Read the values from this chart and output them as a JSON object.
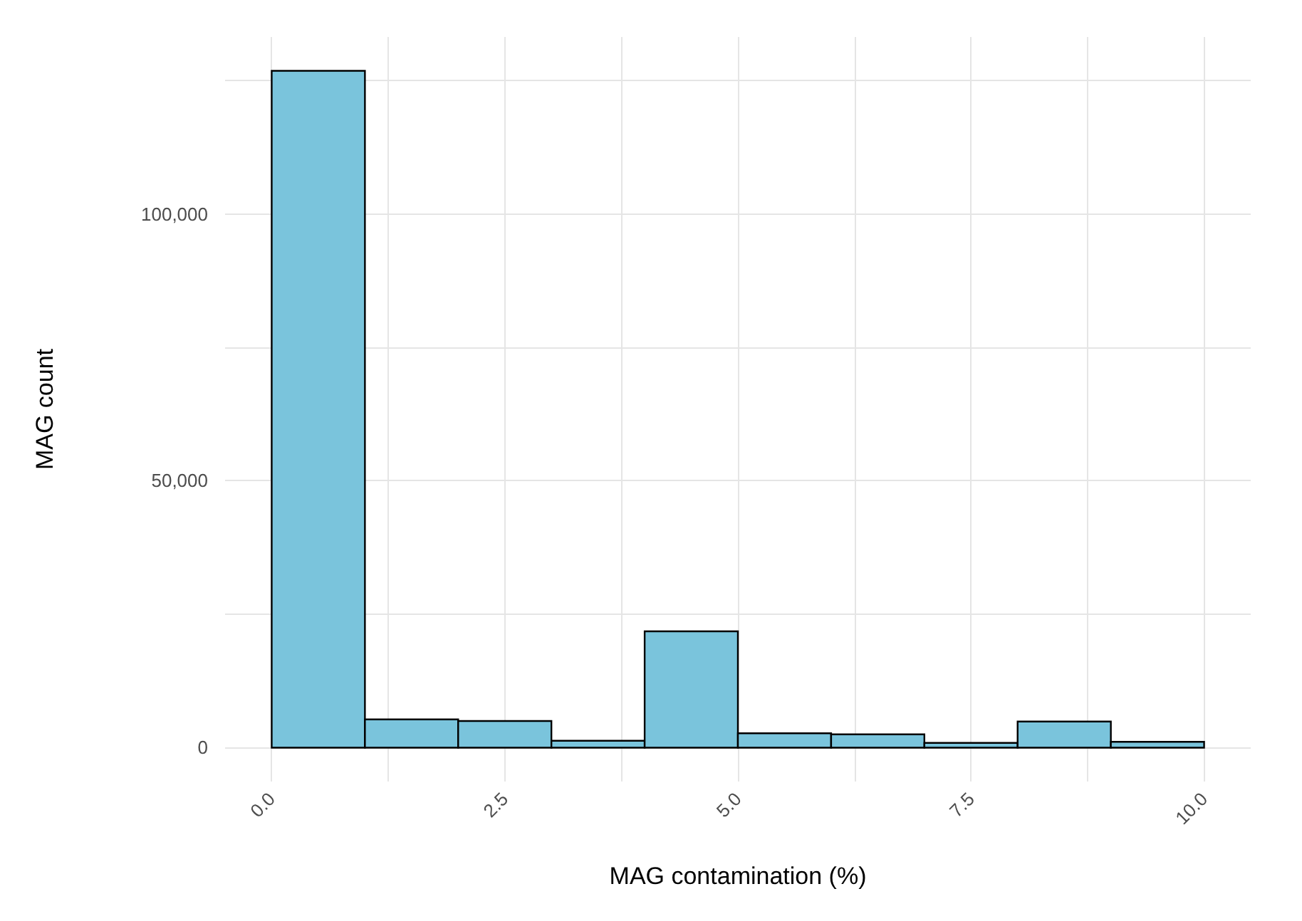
{
  "chart_data": {
    "type": "histogram",
    "xlabel": "MAG contamination (%)",
    "ylabel": "MAG count",
    "bins": [
      0,
      1,
      2,
      3,
      4,
      5,
      6,
      7,
      8,
      9,
      10
    ],
    "values": [
      126800,
      5300,
      5000,
      1300,
      21800,
      2700,
      2500,
      900,
      4900,
      1100
    ],
    "color": "#7ac4dc",
    "xlim": [
      -0.5,
      10.5
    ],
    "xticks": [
      {
        "value": 0,
        "label": "0.0"
      },
      {
        "value": 1.25,
        "label": null
      },
      2.5,
      {
        "value": 3.75,
        "label": null
      },
      {
        "value": 5,
        "label": "5.0"
      },
      {
        "value": 6.25,
        "label": null
      },
      7.5,
      {
        "value": 8.75,
        "label": null
      },
      {
        "value": 10,
        "label": "10.0"
      }
    ],
    "ylim": [
      -6340,
      133140
    ],
    "yticks": [
      0,
      {
        "value": 25000,
        "label": null
      },
      {
        "value": 50000,
        "label": "50,000"
      },
      {
        "value": 75000,
        "label": null
      },
      {
        "value": 100000,
        "label": "100,000"
      },
      {
        "value": 125000,
        "label": null
      }
    ],
    "grid": true
  }
}
